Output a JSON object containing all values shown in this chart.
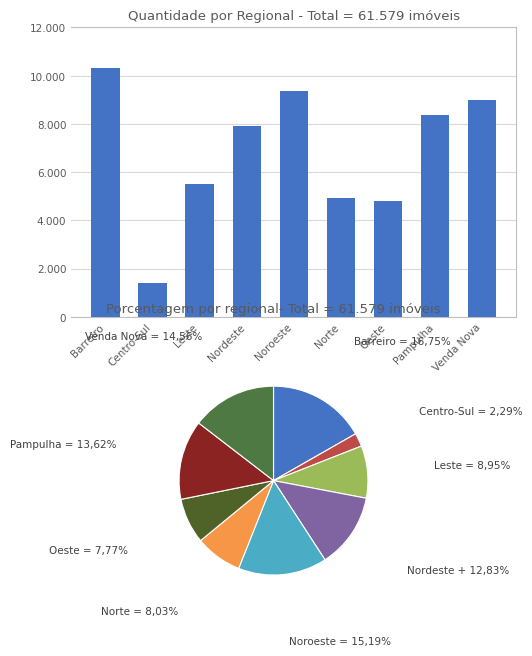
{
  "bar_title": "Quantidade por Regional - Total = 61.579 imóveis",
  "pie_title": "Porcentagem por regional- Total = 61.579 imóveis",
  "categories": [
    "Barreiro",
    "Centro-Sul",
    "Leste",
    "Nordeste",
    "Noroeste",
    "Norte",
    "Oeste",
    "Pampulha",
    "Venda Nova"
  ],
  "values": [
    10313,
    1410,
    5511,
    7898,
    9352,
    4946,
    4786,
    8390,
    8973
  ],
  "bar_color": "#4472C4",
  "pie_labels": [
    "Barreiro = 16,75%",
    "Centro-Sul = 2,29%",
    "Leste = 8,95%",
    "Nordeste + 12,83%",
    "Noroeste = 15,19%",
    "Norte = 8,03%",
    "Oeste = 7,77%",
    "Pampulha = 13,62%",
    "Venda Nova = 14,56%"
  ],
  "pie_sizes": [
    16.75,
    2.29,
    8.95,
    12.83,
    15.19,
    8.03,
    7.77,
    13.62,
    14.56
  ],
  "pie_colors": [
    "#4472C4",
    "#BE4B48",
    "#9BBB59",
    "#8064A2",
    "#4BACC6",
    "#F79646",
    "#4F6228",
    "#8B2323",
    "#4F7942"
  ],
  "title_color": "#595959",
  "bg_color": "#FFFFFF",
  "grid_color": "#D9D9D9",
  "ylim": [
    0,
    12000
  ],
  "yticks": [
    0,
    2000,
    4000,
    6000,
    8000,
    10000,
    12000
  ]
}
